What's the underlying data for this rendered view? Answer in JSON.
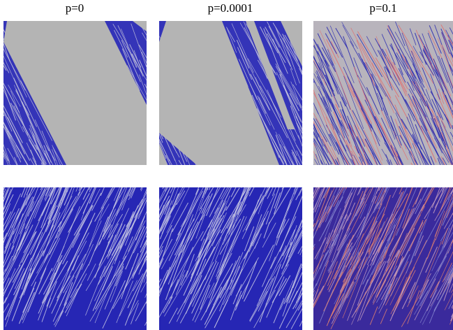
{
  "titles": [
    "p=0",
    "p=0.0001",
    "p=0.1"
  ]
}
